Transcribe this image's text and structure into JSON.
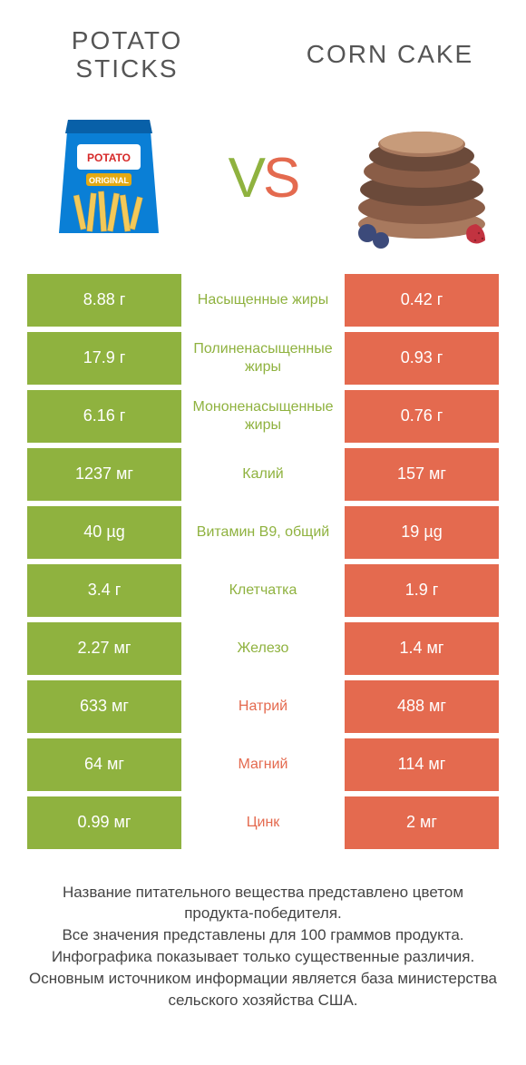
{
  "header": {
    "left_title": "POTATO STICKS",
    "right_title": "CORN CAKE",
    "vs_v": "V",
    "vs_s": "S"
  },
  "colors": {
    "green": "#8fb23f",
    "orange": "#e46a4f",
    "bag_blue": "#0a7fd6",
    "bag_stick": "#f2c95a",
    "cake_brown": "#6b4a3a",
    "cake_light": "#a8795e",
    "berry_red": "#c23340",
    "berry_blue": "#3c4a7a"
  },
  "rows": [
    {
      "left": "8.88 г",
      "label": "Насыщенные жиры",
      "right": "0.42 г",
      "winner": "left"
    },
    {
      "left": "17.9 г",
      "label": "Полиненасыщенные жиры",
      "right": "0.93 г",
      "winner": "left"
    },
    {
      "left": "6.16 г",
      "label": "Мононенасыщенные жиры",
      "right": "0.76 г",
      "winner": "left"
    },
    {
      "left": "1237 мг",
      "label": "Калий",
      "right": "157 мг",
      "winner": "left"
    },
    {
      "left": "40 µg",
      "label": "Витамин B9, общий",
      "right": "19 µg",
      "winner": "left"
    },
    {
      "left": "3.4 г",
      "label": "Клетчатка",
      "right": "1.9 г",
      "winner": "left"
    },
    {
      "left": "2.27 мг",
      "label": "Железо",
      "right": "1.4 мг",
      "winner": "left"
    },
    {
      "left": "633 мг",
      "label": "Натрий",
      "right": "488 мг",
      "winner": "right"
    },
    {
      "left": "64 мг",
      "label": "Магний",
      "right": "114 мг",
      "winner": "right"
    },
    {
      "left": "0.99 мг",
      "label": "Цинк",
      "right": "2 мг",
      "winner": "right"
    }
  ],
  "footer": {
    "line1": "Название питательного вещества представлено цветом продукта-победителя.",
    "line2": "Все значения представлены для 100 граммов продукта.",
    "line3": "Инфографика показывает только существенные различия.",
    "line4": "Основным источником информации является база министерства сельского хозяйства США."
  }
}
